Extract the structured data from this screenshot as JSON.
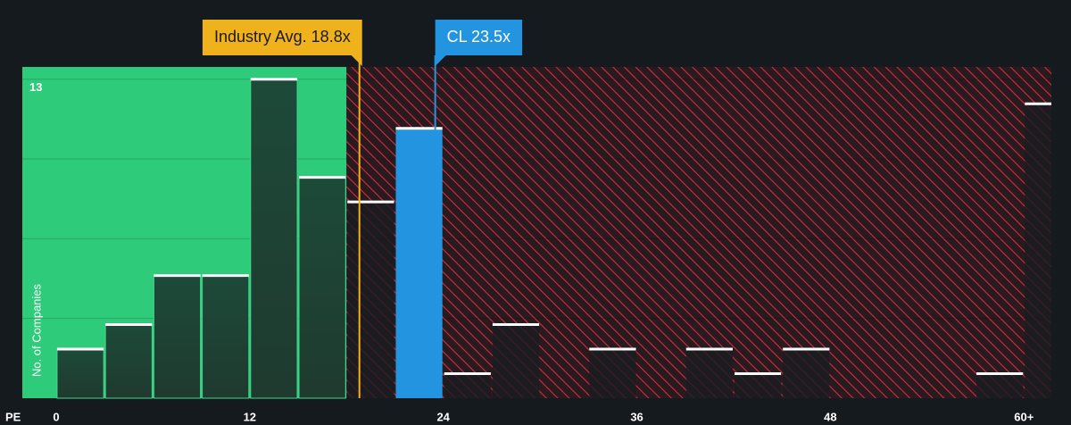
{
  "chart_data": {
    "type": "histogram",
    "x_label": "PE",
    "y_label": "No. of Companies",
    "bins": [
      0,
      3,
      6,
      9,
      12,
      15,
      18,
      21,
      24,
      27,
      30,
      33,
      36,
      39,
      42,
      45,
      48,
      51,
      54,
      57,
      60,
      63
    ],
    "values": [
      2,
      3,
      5,
      5,
      13,
      9,
      8,
      11,
      1,
      3,
      0,
      2,
      0,
      2,
      1,
      2,
      0,
      0,
      0,
      1,
      12
    ],
    "xlim": [
      -2.1,
      61.7
    ],
    "xticks": [
      0,
      12,
      24,
      36,
      48,
      {
        "value": 60,
        "label": "60+"
      }
    ],
    "ylim": [
      0,
      13.5
    ],
    "yticks": [
      13
    ],
    "ygrid": [
      3.25,
      6.5,
      9.75
    ],
    "annotations": [
      {
        "label": "Industry Avg. 18.8x",
        "value": 18.8,
        "color": "#f0b21c"
      },
      {
        "label": "CL 23.5x",
        "value": 23.5,
        "color": "#2394e0"
      }
    ],
    "fair_color": "#2ecc7a",
    "overvalued_color": "#d0313b"
  }
}
